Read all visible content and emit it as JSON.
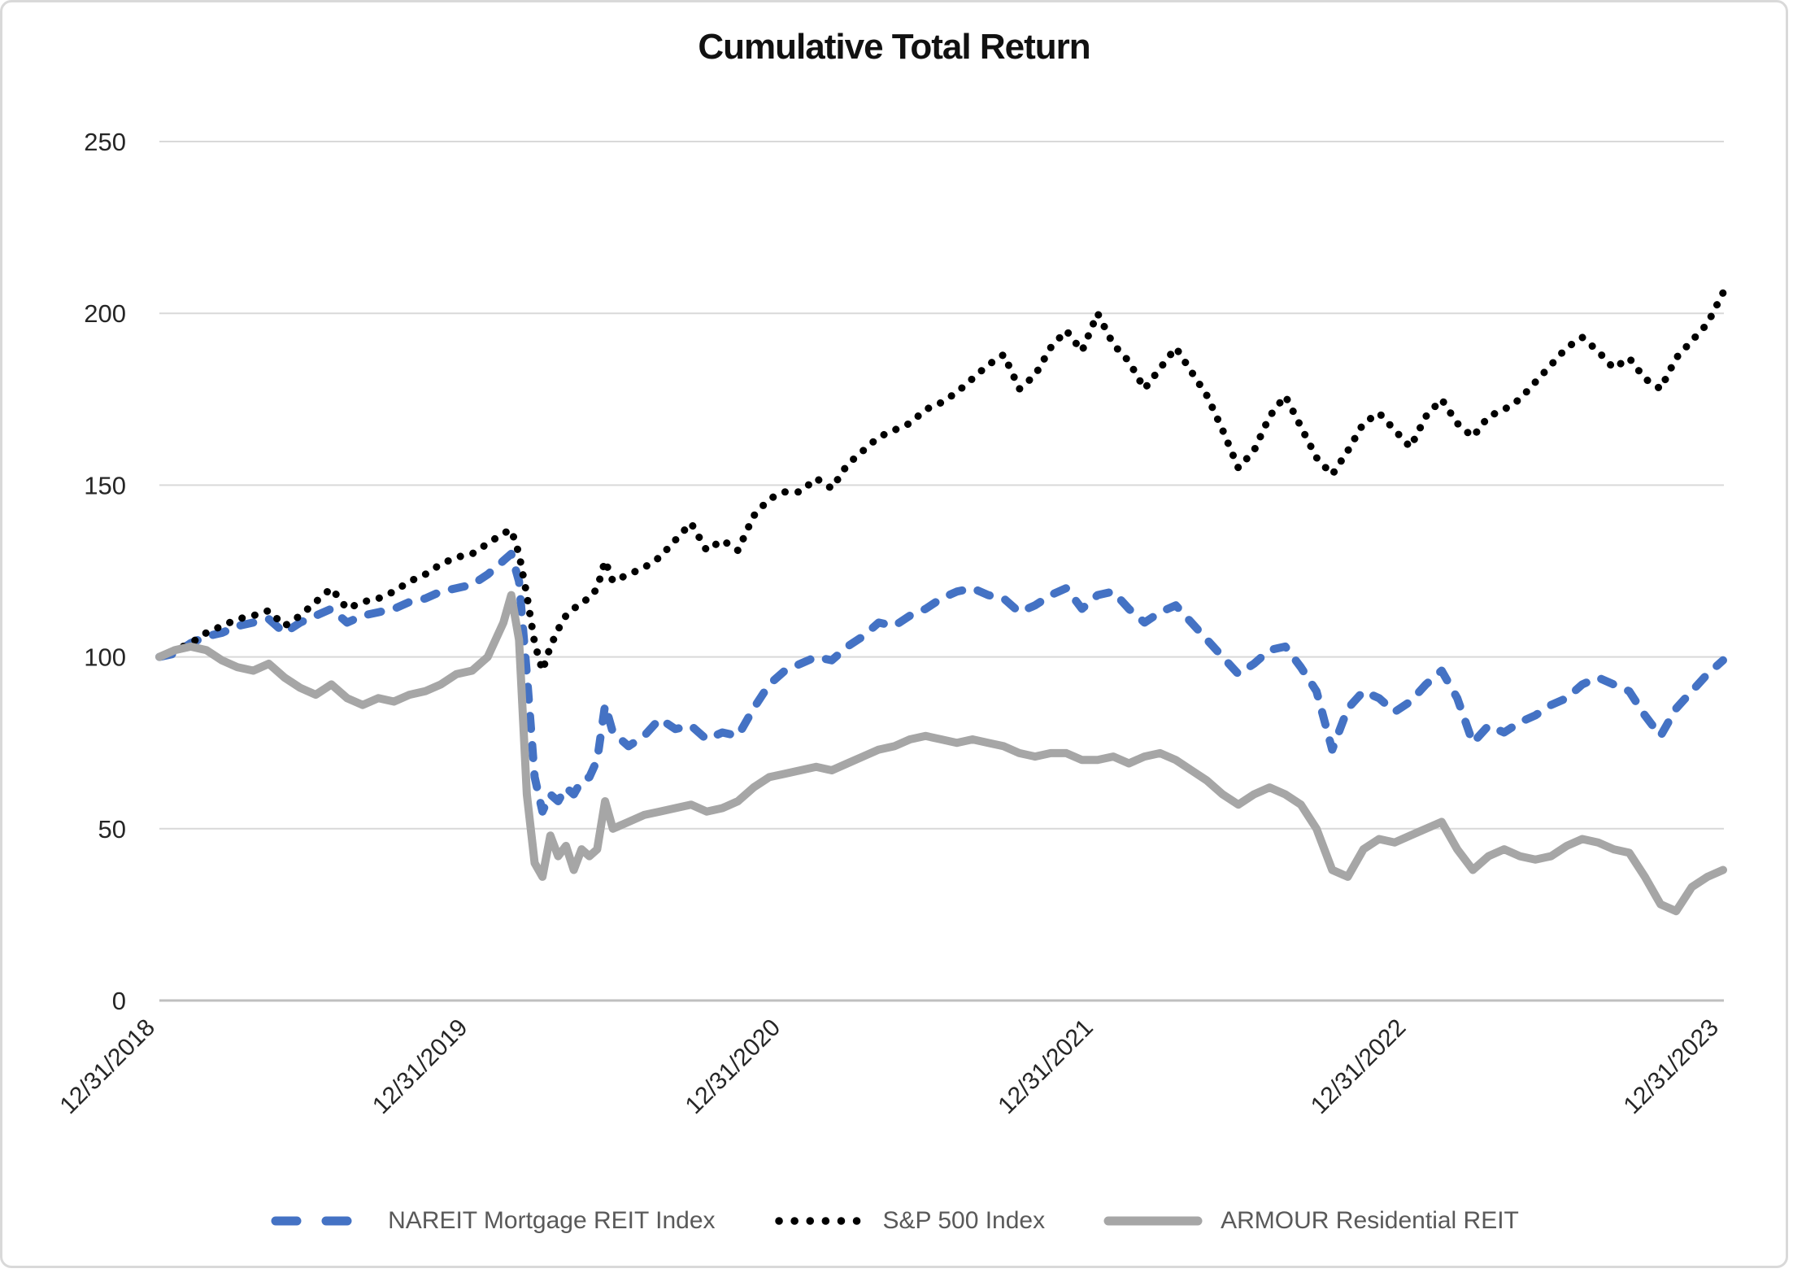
{
  "chart_data": {
    "type": "line",
    "title": "Cumulative Total Return",
    "xlabel": "",
    "ylabel": "",
    "ylim": [
      0,
      250
    ],
    "y_ticks": [
      0,
      50,
      100,
      150,
      200,
      250
    ],
    "x_range": [
      0,
      5
    ],
    "x_tick_labels": [
      "12/31/2018",
      "12/31/2019",
      "12/31/2020",
      "12/31/2021",
      "12/31/2022",
      "12/31/2023"
    ],
    "grid": true,
    "legend_position": "bottom",
    "x_years": [
      0,
      0.05,
      0.1,
      0.15,
      0.2,
      0.25,
      0.3,
      0.35,
      0.4,
      0.45,
      0.5,
      0.55,
      0.6,
      0.65,
      0.7,
      0.75,
      0.8,
      0.85,
      0.9,
      0.95,
      1,
      1.05,
      1.1,
      1.125,
      1.15,
      1.175,
      1.2,
      1.225,
      1.25,
      1.275,
      1.3,
      1.325,
      1.35,
      1.375,
      1.4,
      1.425,
      1.45,
      1.5,
      1.55,
      1.6,
      1.65,
      1.7,
      1.75,
      1.8,
      1.85,
      1.9,
      1.95,
      2,
      2.05,
      2.1,
      2.15,
      2.2,
      2.25,
      2.3,
      2.35,
      2.4,
      2.45,
      2.5,
      2.55,
      2.6,
      2.65,
      2.7,
      2.75,
      2.8,
      2.85,
      2.9,
      2.95,
      3,
      3.05,
      3.1,
      3.15,
      3.2,
      3.25,
      3.3,
      3.35,
      3.4,
      3.45,
      3.5,
      3.55,
      3.6,
      3.65,
      3.7,
      3.75,
      3.8,
      3.85,
      3.9,
      3.95,
      4,
      4.05,
      4.1,
      4.15,
      4.2,
      4.25,
      4.3,
      4.35,
      4.4,
      4.45,
      4.5,
      4.55,
      4.6,
      4.65,
      4.7,
      4.75,
      4.8,
      4.85,
      4.9,
      4.95,
      5
    ],
    "series": [
      {
        "name": "NAREIT Mortgage REIT Index",
        "color": "#4472C4",
        "style": "dashed",
        "values": [
          100,
          101,
          104,
          106,
          107,
          109,
          110,
          111,
          107,
          110,
          112,
          114,
          110,
          112,
          113,
          114,
          116,
          117,
          119,
          120,
          121,
          124,
          128,
          130,
          122,
          95,
          65,
          55,
          60,
          58,
          62,
          60,
          64,
          65,
          70,
          86,
          78,
          74,
          77,
          82,
          79,
          80,
          76,
          78,
          77,
          85,
          92,
          96,
          98,
          100,
          99,
          103,
          106,
          110,
          109,
          112,
          114,
          117,
          119,
          120,
          118,
          117,
          113,
          115,
          118,
          120,
          114,
          118,
          119,
          114,
          110,
          113,
          115,
          110,
          105,
          100,
          95,
          98,
          102,
          103,
          97,
          90,
          73,
          85,
          90,
          88,
          84,
          87,
          92,
          96,
          88,
          75,
          80,
          78,
          81,
          83,
          86,
          88,
          92,
          94,
          92,
          90,
          83,
          77,
          85,
          90,
          95,
          99
        ]
      },
      {
        "name": "S&P 500 Index",
        "color": "#000000",
        "style": "dotted",
        "values": [
          100,
          102,
          104,
          107,
          109,
          111,
          112,
          113.5,
          109,
          112,
          116,
          120,
          114,
          116,
          117,
          119,
          122,
          124,
          127,
          129,
          130,
          133,
          136,
          137,
          130,
          118,
          104,
          96,
          103,
          108,
          112,
          114,
          116,
          117,
          120,
          128,
          122,
          124,
          126,
          129,
          134,
          139,
          131,
          134,
          131,
          141,
          146,
          148,
          148,
          152,
          149,
          156,
          160,
          164,
          166,
          168,
          172,
          174,
          177,
          181,
          185,
          188,
          178,
          182,
          190,
          195,
          189,
          200,
          191,
          186,
          178,
          184,
          190,
          183,
          176,
          166,
          155,
          160,
          170,
          176,
          167,
          158,
          153,
          160,
          168,
          171,
          166,
          161,
          170,
          175,
          168,
          164,
          170,
          172,
          175,
          180,
          185,
          190,
          193,
          189,
          184,
          187,
          181,
          178,
          187,
          192,
          197,
          206
        ]
      },
      {
        "name": "ARMOUR Residential REIT",
        "color": "#A6A6A6",
        "style": "solid",
        "values": [
          100,
          102,
          103,
          102,
          99,
          97,
          96,
          98,
          94,
          91,
          89,
          92,
          88,
          86,
          88,
          87,
          89,
          90,
          92,
          95,
          96,
          100,
          110,
          118,
          105,
          60,
          40,
          36,
          48,
          42,
          45,
          38,
          44,
          42,
          44,
          58,
          50,
          52,
          54,
          55,
          56,
          57,
          55,
          56,
          58,
          62,
          65,
          66,
          67,
          68,
          67,
          69,
          71,
          73,
          74,
          76,
          77,
          76,
          75,
          76,
          75,
          74,
          72,
          71,
          72,
          72,
          70,
          70,
          71,
          69,
          71,
          72,
          70,
          67,
          64,
          60,
          57,
          60,
          62,
          60,
          57,
          50,
          38,
          36,
          44,
          47,
          46,
          48,
          50,
          52,
          44,
          38,
          42,
          44,
          42,
          41,
          42,
          45,
          47,
          46,
          44,
          43,
          36,
          28,
          26,
          33,
          36,
          38
        ]
      }
    ]
  },
  "colors": {
    "background": "#FFFFFF",
    "border": "#D9D9D9",
    "gridline": "#D9D9D9",
    "zero_axis": "#BFBFBF",
    "tick_label": "#262626",
    "legend_text": "#595959"
  }
}
